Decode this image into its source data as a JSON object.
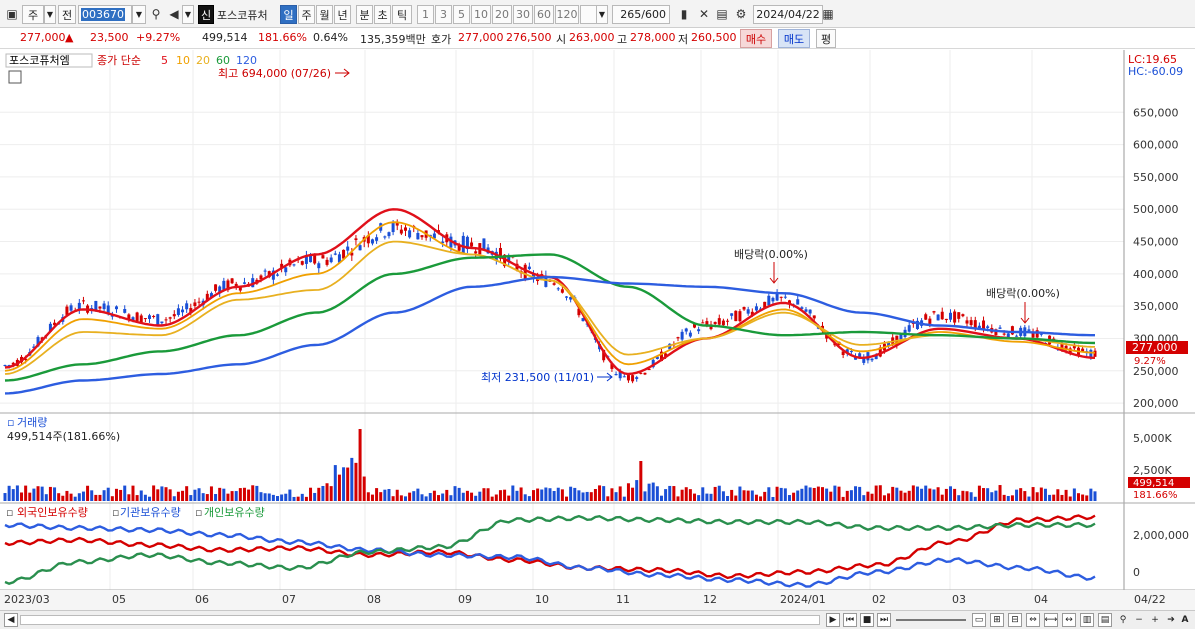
{
  "toolbar": {
    "market_label": "주",
    "prev_label": "전",
    "code": "003670",
    "badge": "신",
    "name": "포스코퓨처",
    "periods": [
      "일",
      "주",
      "월",
      "년",
      "분",
      "초",
      "틱"
    ],
    "selected_period": "일",
    "minute_options": [
      "1",
      "3",
      "5",
      "10",
      "20",
      "30",
      "60",
      "120"
    ],
    "count": "265",
    "count_total": "/600",
    "date": "2024/04/22"
  },
  "quote": {
    "price": "277,000",
    "arrow": "▲",
    "change": "23,500",
    "change_pct": "+9.27%",
    "volume": "499,514",
    "volume_ratio": "181.66%",
    "turnover": "0.64%",
    "amount": "135,359백만",
    "bid_label": "호가",
    "bid1": "277,000",
    "bid2": "276,500",
    "open_label": "시",
    "open": "263,000",
    "high_label": "고",
    "high": "278,000",
    "low_label": "저",
    "low": "260,500",
    "buy_label": "매수",
    "sell_label": "매도",
    "eval_label": "평"
  },
  "price_panel": {
    "name_tag": "포스코퓨처엠",
    "ma_label": "종가 단순",
    "ma_periods": [
      "5",
      "10",
      "20",
      "60",
      "120"
    ],
    "lc": "LC:19.65",
    "hc": "HC:-60.09",
    "max_label": "최고 694,000 (07/26)",
    "min_label": "최저 231,500 (11/01)",
    "dividend1": "배당락(0.00%)",
    "dividend2": "배당락(0.00%)",
    "price_tag": "277,000",
    "pct_tag": "9.27%",
    "y_ticks": [
      "650,000",
      "600,000",
      "550,000",
      "500,000",
      "450,000",
      "400,000",
      "350,000",
      "300,000",
      "250,000",
      "200,000"
    ]
  },
  "volume_panel": {
    "title": "거래량",
    "value": "499,514주(181.66%)",
    "y_ticks": [
      "5,000K",
      "2,500K"
    ],
    "tag": "499,514",
    "tag_pct": "181.66%"
  },
  "holdings_panel": {
    "legend": [
      "외국인보유수량",
      "기관보유수량",
      "개인보유수량"
    ],
    "y_ticks": [
      "2,000,000",
      "0"
    ]
  },
  "x_axis": [
    "2023/03",
    "05",
    "06",
    "07",
    "08",
    "09",
    "10",
    "11",
    "12",
    "2024/01",
    "02",
    "03",
    "04",
    "04/22"
  ],
  "colors": {
    "up": "#d40000",
    "down": "#1a4fd6",
    "ma5": "#e0101a",
    "ma10": "#f0a000",
    "ma20": "#e8b020",
    "ma60": "#1a9a3a",
    "ma120": "#2d5de0"
  },
  "chart_data": {
    "type": "line",
    "title": "포스코퓨처엠",
    "x": [
      "2023/03",
      "04",
      "05",
      "06",
      "07",
      "08",
      "09",
      "10",
      "11",
      "12",
      "2024/01",
      "02",
      "03",
      "04",
      "04/22"
    ],
    "price_close": [
      258000,
      350000,
      330000,
      385000,
      420000,
      470000,
      445000,
      390000,
      240000,
      320000,
      360000,
      270000,
      335000,
      310000,
      277000
    ],
    "series": [
      {
        "name": "5",
        "values": [
          255000,
          345000,
          320000,
          380000,
          430000,
          500000,
          440000,
          395000,
          245000,
          300000,
          355000,
          270000,
          315000,
          300000,
          270000
        ]
      },
      {
        "name": "10",
        "values": [
          250000,
          330000,
          315000,
          370000,
          400000,
          480000,
          430000,
          390000,
          260000,
          300000,
          345000,
          280000,
          310000,
          295000,
          278000
        ]
      },
      {
        "name": "20",
        "values": [
          245000,
          310000,
          305000,
          360000,
          375000,
          450000,
          430000,
          390000,
          275000,
          300000,
          340000,
          290000,
          305000,
          300000,
          287000
        ]
      },
      {
        "name": "60",
        "values": [
          235000,
          260000,
          280000,
          305000,
          340000,
          400000,
          425000,
          430000,
          380000,
          320000,
          305000,
          310000,
          305000,
          300000,
          293000
        ]
      },
      {
        "name": "120",
        "values": [
          215000,
          235000,
          245000,
          260000,
          290000,
          340000,
          380000,
          395000,
          385000,
          380000,
          370000,
          340000,
          320000,
          310000,
          305000
        ]
      }
    ],
    "ylim": [
      180000,
      700000
    ]
  }
}
